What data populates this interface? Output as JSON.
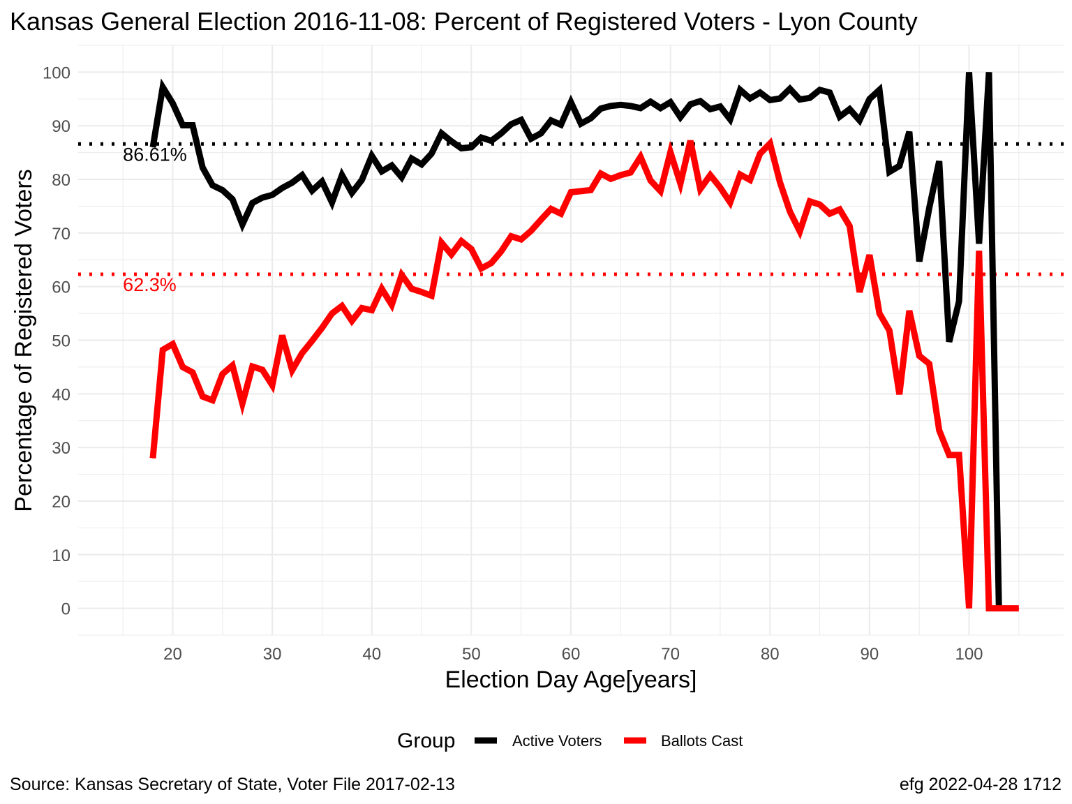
{
  "chart_data": {
    "type": "line",
    "title": "Kansas General Election 2016-11-08:  Percent of Registered Voters - Lyon County",
    "xlabel": "Election Day Age[years]",
    "ylabel": "Percentage of Registered Voters",
    "xlim": [
      10.5,
      109.5
    ],
    "ylim": [
      -5,
      105
    ],
    "x_ticks": [
      20,
      30,
      40,
      50,
      60,
      70,
      80,
      90,
      100
    ],
    "y_ticks": [
      0,
      10,
      20,
      30,
      40,
      50,
      60,
      70,
      80,
      90,
      100
    ],
    "grid": true,
    "legend": {
      "title": "Group",
      "position": "bottom",
      "entries": [
        {
          "label": "Active Voters",
          "color": "#000000"
        },
        {
          "label": "Ballots Cast",
          "color": "#ff0000"
        }
      ]
    },
    "reference_lines": [
      {
        "label": "86.61%",
        "value": 86.61,
        "color": "#000000",
        "style": "dotted"
      },
      {
        "label": "62.3%",
        "value": 62.3,
        "color": "#ff0000",
        "style": "dotted"
      }
    ],
    "series": [
      {
        "name": "Active Voters",
        "color": "#000000",
        "x": [
          18,
          19,
          20,
          21,
          22,
          23,
          24,
          25,
          26,
          27,
          28,
          29,
          30,
          31,
          32,
          33,
          34,
          35,
          36,
          37,
          38,
          39,
          40,
          41,
          42,
          43,
          44,
          45,
          46,
          47,
          48,
          49,
          50,
          51,
          52,
          53,
          54,
          55,
          56,
          57,
          58,
          59,
          60,
          61,
          62,
          63,
          64,
          65,
          66,
          67,
          68,
          69,
          70,
          71,
          72,
          73,
          74,
          75,
          76,
          77,
          78,
          79,
          80,
          81,
          82,
          83,
          84,
          85,
          86,
          87,
          88,
          89,
          90,
          91,
          92,
          93,
          94,
          95,
          96,
          97,
          98,
          99,
          100,
          101,
          102,
          103
        ],
        "values": [
          86,
          97.2,
          94.2,
          90.1,
          90.1,
          82.2,
          78.9,
          78,
          76.3,
          71.6,
          75.6,
          76.6,
          77.1,
          78.4,
          79.4,
          80.8,
          77.9,
          79.6,
          75.7,
          80.8,
          77.5,
          79.9,
          84.4,
          81.5,
          82.6,
          80.4,
          83.9,
          82.8,
          84.8,
          88.6,
          87.1,
          85.8,
          86,
          87.8,
          87.2,
          88.6,
          90.3,
          91.1,
          87.6,
          88.6,
          91,
          90.2,
          94.4,
          90.4,
          91.4,
          93.2,
          93.7,
          93.9,
          93.7,
          93.3,
          94.5,
          93.3,
          94.4,
          91.6,
          94,
          94.6,
          93.1,
          93.6,
          91.2,
          96.7,
          95.1,
          96.2,
          94.8,
          95.1,
          96.9,
          94.9,
          95.2,
          96.7,
          96.2,
          91.7,
          93.1,
          91,
          95,
          96.7,
          81.4,
          82.5,
          88.9,
          64.7,
          74.7,
          83.4,
          49.7,
          57.3,
          100,
          68,
          100,
          0
        ]
      },
      {
        "name": "Ballots Cast",
        "color": "#ff0000",
        "x": [
          18,
          19,
          20,
          21,
          22,
          23,
          24,
          25,
          26,
          27,
          28,
          29,
          30,
          31,
          32,
          33,
          34,
          35,
          36,
          37,
          38,
          39,
          40,
          41,
          42,
          43,
          44,
          45,
          46,
          47,
          48,
          49,
          50,
          51,
          52,
          53,
          54,
          55,
          56,
          57,
          58,
          59,
          60,
          61,
          62,
          63,
          64,
          65,
          66,
          67,
          68,
          69,
          70,
          71,
          72,
          73,
          74,
          75,
          76,
          77,
          78,
          79,
          80,
          81,
          82,
          83,
          84,
          85,
          86,
          87,
          88,
          89,
          90,
          91,
          92,
          93,
          94,
          95,
          96,
          97,
          98,
          99,
          100,
          101,
          102,
          103,
          104,
          105
        ],
        "values": [
          28,
          48.2,
          49.3,
          45,
          44,
          39.5,
          38.8,
          43.7,
          45.3,
          38.2,
          45.1,
          44.5,
          41.6,
          50.9,
          44.4,
          47.6,
          49.9,
          52.3,
          55,
          56.4,
          53.6,
          56,
          55.6,
          59.6,
          56.6,
          62.2,
          59.6,
          59,
          58.3,
          68.2,
          66,
          68.5,
          67,
          63.4,
          64.4,
          66.6,
          69.4,
          68.8,
          70.4,
          72.5,
          74.5,
          73.6,
          77.6,
          77.8,
          78,
          81.1,
          80.1,
          80.8,
          81.3,
          84.2,
          79.8,
          77.8,
          85.1,
          79.2,
          87.2,
          78.2,
          80.8,
          78.5,
          75.7,
          80.9,
          79.9,
          84.8,
          86.7,
          79.5,
          74,
          70.3,
          75.9,
          75.3,
          73.6,
          74.4,
          71.3,
          59,
          65.9,
          55,
          51.8,
          39.9,
          55.5,
          47.1,
          45.6,
          33.2,
          28.6,
          28.6,
          0,
          66.7,
          0,
          0,
          0,
          0
        ]
      }
    ]
  },
  "caption": {
    "source": "Source:  Kansas Secretary of State, Voter File  2017-02-13",
    "stamp": "efg 2022-04-28 1712"
  }
}
